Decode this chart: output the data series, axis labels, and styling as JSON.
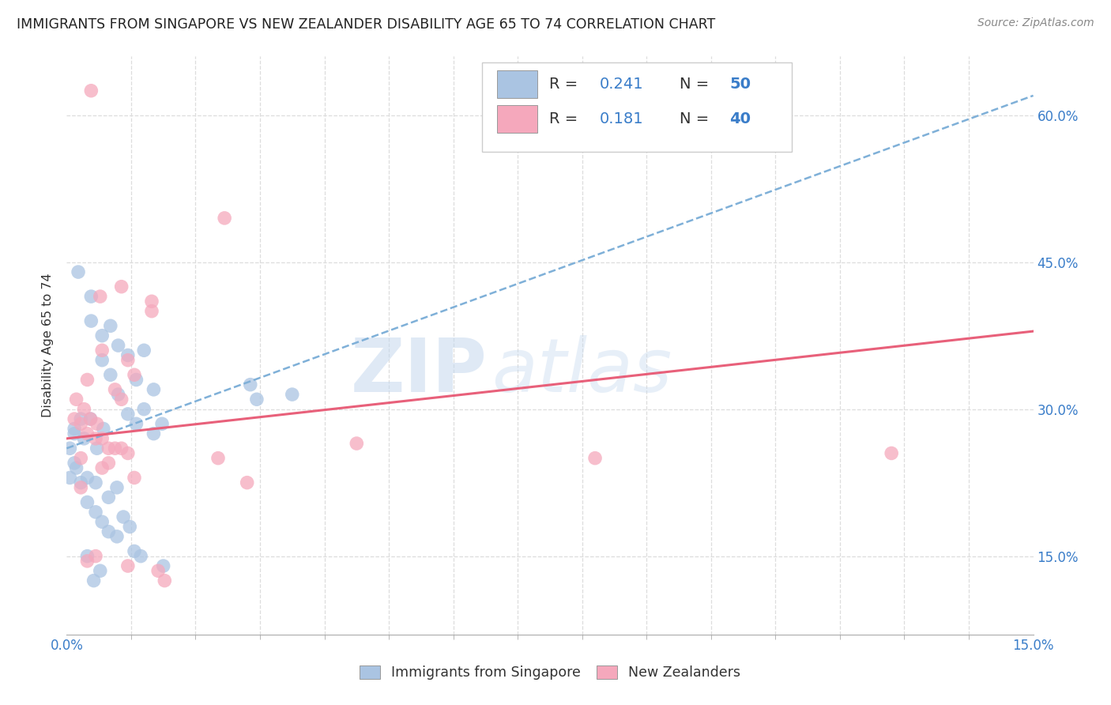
{
  "title": "IMMIGRANTS FROM SINGAPORE VS NEW ZEALANDER DISABILITY AGE 65 TO 74 CORRELATION CHART",
  "source": "Source: ZipAtlas.com",
  "ylabel": "Disability Age 65 to 74",
  "x_tick_labels_edge": [
    "0.0%",
    "15.0%"
  ],
  "x_tick_positions_edge": [
    0.0,
    15.0
  ],
  "x_minor_ticks": [
    1.0,
    2.0,
    3.0,
    4.0,
    5.0,
    6.0,
    7.0,
    8.0,
    9.0,
    10.0,
    11.0,
    12.0,
    13.0,
    14.0
  ],
  "y_tick_labels": [
    "15.0%",
    "30.0%",
    "45.0%",
    "60.0%"
  ],
  "y_tick_positions": [
    15.0,
    30.0,
    45.0,
    60.0
  ],
  "xlim": [
    0.0,
    15.0
  ],
  "ylim": [
    7.0,
    66.0
  ],
  "watermark_zip": "ZIP",
  "watermark_atlas": "atlas",
  "legend_blue_r": "0.241",
  "legend_blue_n": "50",
  "legend_pink_r": "0.181",
  "legend_pink_n": "40",
  "blue_color": "#aac4e2",
  "pink_color": "#f5a8bc",
  "blue_trendline_color": "#7fb0d8",
  "pink_trendline_color": "#e8607a",
  "number_color": "#3a7dc9",
  "blue_scatter": [
    [
      0.18,
      44.0
    ],
    [
      0.38,
      41.5
    ],
    [
      0.38,
      39.0
    ],
    [
      0.55,
      37.5
    ],
    [
      0.55,
      35.0
    ],
    [
      0.68,
      38.5
    ],
    [
      0.68,
      33.5
    ],
    [
      0.8,
      36.5
    ],
    [
      0.8,
      31.5
    ],
    [
      0.95,
      35.5
    ],
    [
      0.95,
      29.5
    ],
    [
      1.08,
      33.0
    ],
    [
      1.08,
      28.5
    ],
    [
      1.2,
      36.0
    ],
    [
      1.2,
      30.0
    ],
    [
      1.35,
      32.0
    ],
    [
      1.35,
      27.5
    ],
    [
      0.12,
      27.5
    ],
    [
      0.12,
      24.5
    ],
    [
      0.22,
      22.5
    ],
    [
      0.32,
      23.0
    ],
    [
      0.45,
      22.5
    ],
    [
      0.32,
      20.5
    ],
    [
      0.45,
      19.5
    ],
    [
      0.55,
      18.5
    ],
    [
      0.65,
      21.0
    ],
    [
      0.65,
      17.5
    ],
    [
      0.78,
      22.0
    ],
    [
      0.78,
      17.0
    ],
    [
      0.88,
      19.0
    ],
    [
      0.98,
      18.0
    ],
    [
      1.05,
      15.5
    ],
    [
      1.15,
      15.0
    ],
    [
      0.32,
      15.0
    ],
    [
      0.42,
      12.5
    ],
    [
      0.52,
      13.5
    ],
    [
      0.15,
      24.0
    ],
    [
      0.27,
      27.0
    ],
    [
      0.37,
      29.0
    ],
    [
      0.47,
      26.0
    ],
    [
      0.57,
      28.0
    ],
    [
      2.85,
      32.5
    ],
    [
      2.95,
      31.0
    ],
    [
      0.22,
      29.0
    ],
    [
      0.12,
      28.0
    ],
    [
      1.48,
      28.5
    ],
    [
      1.5,
      14.0
    ],
    [
      0.05,
      26.0
    ],
    [
      0.05,
      23.0
    ],
    [
      3.5,
      31.5
    ]
  ],
  "pink_scatter": [
    [
      0.38,
      62.5
    ],
    [
      2.45,
      49.5
    ],
    [
      0.52,
      41.5
    ],
    [
      0.85,
      42.5
    ],
    [
      1.32,
      41.0
    ],
    [
      1.32,
      40.0
    ],
    [
      0.55,
      36.0
    ],
    [
      0.95,
      35.0
    ],
    [
      1.05,
      33.5
    ],
    [
      0.22,
      28.5
    ],
    [
      0.32,
      27.5
    ],
    [
      0.45,
      27.0
    ],
    [
      0.55,
      27.0
    ],
    [
      0.65,
      26.0
    ],
    [
      0.75,
      26.0
    ],
    [
      0.85,
      26.0
    ],
    [
      0.95,
      25.5
    ],
    [
      0.32,
      14.5
    ],
    [
      0.45,
      15.0
    ],
    [
      0.95,
      14.0
    ],
    [
      1.42,
      13.5
    ],
    [
      1.52,
      12.5
    ],
    [
      0.55,
      24.0
    ],
    [
      0.65,
      24.5
    ],
    [
      1.05,
      23.0
    ],
    [
      0.22,
      25.0
    ],
    [
      0.15,
      31.0
    ],
    [
      0.27,
      30.0
    ],
    [
      0.37,
      29.0
    ],
    [
      0.47,
      28.5
    ],
    [
      0.75,
      32.0
    ],
    [
      0.85,
      31.0
    ],
    [
      2.35,
      25.0
    ],
    [
      0.32,
      33.0
    ],
    [
      0.12,
      29.0
    ],
    [
      0.22,
      22.0
    ],
    [
      4.5,
      26.5
    ],
    [
      8.2,
      25.0
    ],
    [
      12.8,
      25.5
    ],
    [
      2.8,
      22.5
    ]
  ],
  "blue_trendline_intercept": 26.0,
  "blue_trendline_slope": 2.4,
  "pink_trendline_intercept": 27.0,
  "pink_trendline_slope": 0.73,
  "background_color": "#ffffff",
  "grid_color": "#dddddd",
  "title_fontsize": 12.5,
  "source_color": "#888888",
  "label_color": "#333333",
  "tick_color": "#3a7dc9"
}
